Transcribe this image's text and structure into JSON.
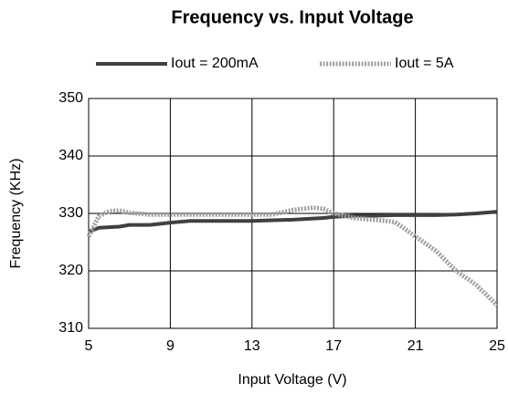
{
  "chart_data": {
    "type": "line",
    "title": "Frequency vs. Input Voltage",
    "x_label": "Input Voltage (V)",
    "y_label": "Frequency (KHz)",
    "x": [
      5,
      5.5,
      6,
      6.5,
      7,
      8,
      9,
      10,
      13,
      14,
      15,
      16,
      16.5,
      17,
      18,
      19,
      20,
      21,
      22,
      23,
      24,
      25
    ],
    "series": [
      {
        "name": "Iout = 200mA",
        "color": "#404040",
        "values": [
          326.8,
          327.5,
          327.6,
          327.7,
          328.0,
          328.0,
          328.4,
          328.7,
          328.7,
          328.8,
          328.9,
          329.1,
          329.2,
          329.4,
          329.6,
          329.6,
          329.7,
          329.7,
          329.7,
          329.8,
          330.0,
          330.3
        ]
      },
      {
        "name": "Iout = 5A",
        "color": "#a0a0a0",
        "values": [
          326.0,
          329.5,
          330.4,
          330.5,
          330.1,
          329.8,
          329.8,
          329.8,
          329.8,
          329.8,
          330.6,
          331.0,
          330.8,
          330.0,
          329.2,
          328.9,
          328.5,
          326.0,
          323.5,
          320.0,
          317.5,
          314.0
        ]
      }
    ],
    "xlim": [
      5,
      25
    ],
    "xticks": [
      5,
      9,
      13,
      17,
      21,
      25
    ],
    "ylim": [
      310,
      350
    ],
    "yticks": [
      310,
      320,
      330,
      340,
      350
    ],
    "grid": true,
    "legend": "top"
  }
}
